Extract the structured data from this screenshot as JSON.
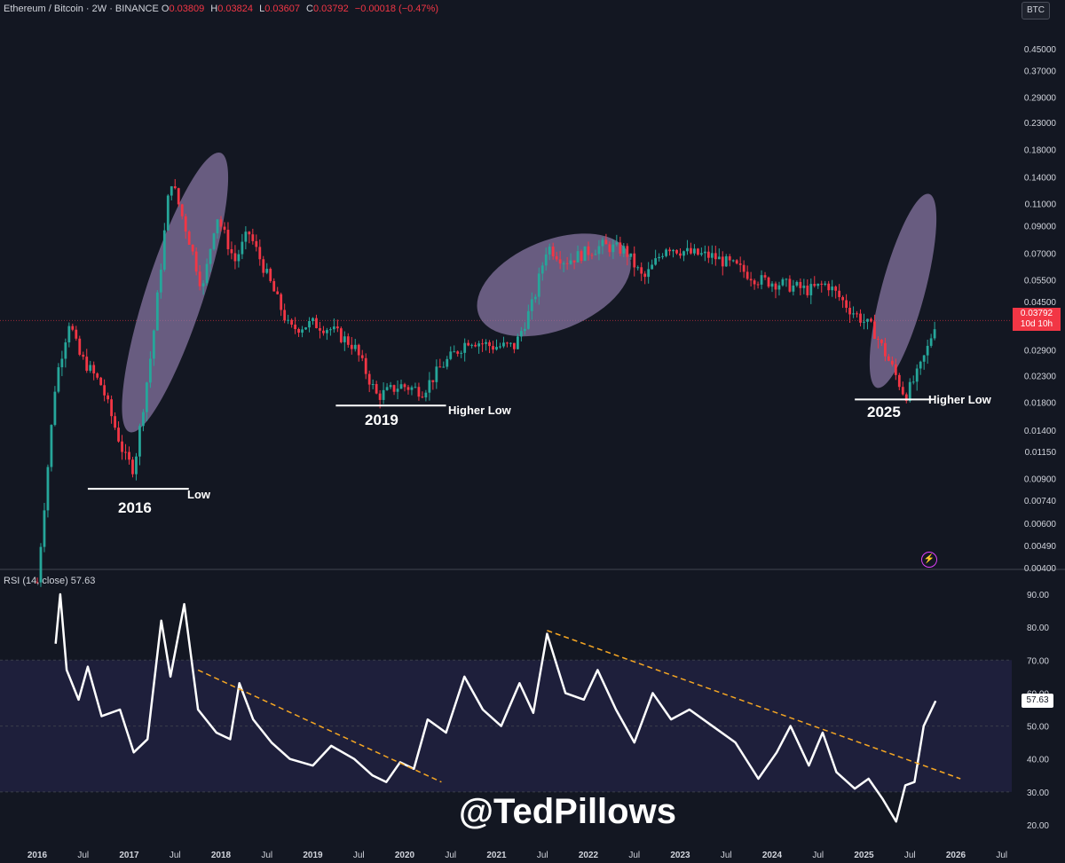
{
  "header": {
    "symbol": "Ethereum / Bitcoin · 2W · BINANCE",
    "o_label": "O",
    "o": "0.03809",
    "h_label": "H",
    "h": "0.03824",
    "l_label": "L",
    "l": "0.03607",
    "c_label": "C",
    "c": "0.03792",
    "change": "−0.00018 (−0.47%)"
  },
  "currency_button": "BTC",
  "price_badge": {
    "price": "0.03792",
    "countdown": "10d 10h"
  },
  "rsi_header": "RSI (14, close)  57.63",
  "rsi_badge": "57.63",
  "annotations": {
    "low_2016": "Low",
    "year_2016": "2016",
    "hl_2019": "Higher Low",
    "year_2019": "2019",
    "hl_2025": "Higher Low",
    "year_2025": "2025"
  },
  "watermark": "@TedPillows",
  "colors": {
    "background": "#131722",
    "up": "#26a69a",
    "down": "#f23645",
    "highlight": "#8d7ba8",
    "trendline": "#f5a623",
    "rsi_line": "#ffffff",
    "rsi_band": "#1e1f3b"
  },
  "icons": {
    "bolt": "lightning-icon"
  },
  "chart_data": [
    {
      "type": "candlestick",
      "scale": "log",
      "y_ticks": [
        "0.45000",
        "0.37000",
        "0.29000",
        "0.23000",
        "0.18000",
        "0.14000",
        "0.11000",
        "0.09000",
        "0.07000",
        "0.05500",
        "0.04500",
        "0.02900",
        "0.02300",
        "0.01800",
        "0.01400",
        "0.01150",
        "0.00900",
        "0.00740",
        "0.00600",
        "0.00490",
        "0.00400"
      ],
      "x_ticks": [
        "2016",
        "Jul",
        "2017",
        "Jul",
        "2018",
        "Jul",
        "2019",
        "Jul",
        "2020",
        "Jul",
        "2021",
        "Jul",
        "2022",
        "Jul",
        "2023",
        "Jul",
        "2024",
        "Jul",
        "2025",
        "Jul",
        "2026",
        "Jul"
      ],
      "ylim": [
        0.004,
        0.5
      ],
      "current_price": 0.03792,
      "series": [
        {
          "date": 2016.0,
          "close": 0.0035
        },
        {
          "date": 2016.2,
          "close": 0.022
        },
        {
          "date": 2016.35,
          "close": 0.038
        },
        {
          "date": 2016.45,
          "close": 0.028
        },
        {
          "date": 2016.7,
          "close": 0.021
        },
        {
          "date": 2016.95,
          "close": 0.011
        },
        {
          "date": 2017.05,
          "close": 0.0098
        },
        {
          "date": 2017.25,
          "close": 0.03
        },
        {
          "date": 2017.45,
          "close": 0.14
        },
        {
          "date": 2017.65,
          "close": 0.08
        },
        {
          "date": 2017.8,
          "close": 0.05
        },
        {
          "date": 2017.95,
          "close": 0.1
        },
        {
          "date": 2018.15,
          "close": 0.065
        },
        {
          "date": 2018.3,
          "close": 0.085
        },
        {
          "date": 2018.55,
          "close": 0.052
        },
        {
          "date": 2018.75,
          "close": 0.035
        },
        {
          "date": 2019.0,
          "close": 0.037
        },
        {
          "date": 2019.2,
          "close": 0.035
        },
        {
          "date": 2019.45,
          "close": 0.03
        },
        {
          "date": 2019.7,
          "close": 0.019
        },
        {
          "date": 2019.95,
          "close": 0.021
        },
        {
          "date": 2020.2,
          "close": 0.02
        },
        {
          "date": 2020.4,
          "close": 0.025
        },
        {
          "date": 2020.7,
          "close": 0.032
        },
        {
          "date": 2020.95,
          "close": 0.03
        },
        {
          "date": 2021.2,
          "close": 0.03
        },
        {
          "date": 2021.4,
          "close": 0.045
        },
        {
          "date": 2021.55,
          "close": 0.075
        },
        {
          "date": 2021.75,
          "close": 0.065
        },
        {
          "date": 2021.95,
          "close": 0.07
        },
        {
          "date": 2022.15,
          "close": 0.075
        },
        {
          "date": 2022.4,
          "close": 0.072
        },
        {
          "date": 2022.6,
          "close": 0.055
        },
        {
          "date": 2022.85,
          "close": 0.075
        },
        {
          "date": 2023.1,
          "close": 0.07
        },
        {
          "date": 2023.35,
          "close": 0.068
        },
        {
          "date": 2023.6,
          "close": 0.062
        },
        {
          "date": 2023.85,
          "close": 0.055
        },
        {
          "date": 2024.1,
          "close": 0.053
        },
        {
          "date": 2024.4,
          "close": 0.05
        },
        {
          "date": 2024.6,
          "close": 0.053
        },
        {
          "date": 2024.85,
          "close": 0.042
        },
        {
          "date": 2025.1,
          "close": 0.035
        },
        {
          "date": 2025.3,
          "close": 0.025
        },
        {
          "date": 2025.45,
          "close": 0.019
        },
        {
          "date": 2025.6,
          "close": 0.024
        },
        {
          "date": 2025.7,
          "close": 0.03
        },
        {
          "date": 2025.78,
          "close": 0.038
        }
      ]
    },
    {
      "type": "line",
      "y_ticks": [
        "90.00",
        "80.00",
        "70.00",
        "60.00",
        "50.00",
        "40.00",
        "30.00",
        "20.00"
      ],
      "ylim": [
        16,
        96
      ],
      "band": [
        30,
        70
      ],
      "current": 57.63,
      "series": [
        {
          "date": 2016.2,
          "value": 75
        },
        {
          "date": 2016.25,
          "value": 90
        },
        {
          "date": 2016.32,
          "value": 67
        },
        {
          "date": 2016.45,
          "value": 58
        },
        {
          "date": 2016.55,
          "value": 68
        },
        {
          "date": 2016.7,
          "value": 53
        },
        {
          "date": 2016.9,
          "value": 55
        },
        {
          "date": 2017.05,
          "value": 42
        },
        {
          "date": 2017.2,
          "value": 46
        },
        {
          "date": 2017.35,
          "value": 82
        },
        {
          "date": 2017.45,
          "value": 65
        },
        {
          "date": 2017.6,
          "value": 87
        },
        {
          "date": 2017.75,
          "value": 55
        },
        {
          "date": 2017.95,
          "value": 48
        },
        {
          "date": 2018.1,
          "value": 46
        },
        {
          "date": 2018.2,
          "value": 63
        },
        {
          "date": 2018.35,
          "value": 52
        },
        {
          "date": 2018.55,
          "value": 45
        },
        {
          "date": 2018.75,
          "value": 40
        },
        {
          "date": 2019.0,
          "value": 38
        },
        {
          "date": 2019.2,
          "value": 44
        },
        {
          "date": 2019.45,
          "value": 40
        },
        {
          "date": 2019.65,
          "value": 35
        },
        {
          "date": 2019.8,
          "value": 33
        },
        {
          "date": 2019.95,
          "value": 39
        },
        {
          "date": 2020.1,
          "value": 37
        },
        {
          "date": 2020.25,
          "value": 52
        },
        {
          "date": 2020.45,
          "value": 48
        },
        {
          "date": 2020.65,
          "value": 65
        },
        {
          "date": 2020.85,
          "value": 55
        },
        {
          "date": 2021.05,
          "value": 50
        },
        {
          "date": 2021.25,
          "value": 63
        },
        {
          "date": 2021.4,
          "value": 54
        },
        {
          "date": 2021.55,
          "value": 78
        },
        {
          "date": 2021.75,
          "value": 60
        },
        {
          "date": 2021.95,
          "value": 58
        },
        {
          "date": 2022.1,
          "value": 67
        },
        {
          "date": 2022.3,
          "value": 55
        },
        {
          "date": 2022.5,
          "value": 45
        },
        {
          "date": 2022.7,
          "value": 60
        },
        {
          "date": 2022.9,
          "value": 52
        },
        {
          "date": 2023.1,
          "value": 55
        },
        {
          "date": 2023.35,
          "value": 50
        },
        {
          "date": 2023.6,
          "value": 45
        },
        {
          "date": 2023.85,
          "value": 34
        },
        {
          "date": 2024.05,
          "value": 42
        },
        {
          "date": 2024.2,
          "value": 50
        },
        {
          "date": 2024.4,
          "value": 38
        },
        {
          "date": 2024.55,
          "value": 48
        },
        {
          "date": 2024.7,
          "value": 36
        },
        {
          "date": 2024.9,
          "value": 31
        },
        {
          "date": 2025.05,
          "value": 34
        },
        {
          "date": 2025.2,
          "value": 28
        },
        {
          "date": 2025.35,
          "value": 21
        },
        {
          "date": 2025.45,
          "value": 32
        },
        {
          "date": 2025.55,
          "value": 33
        },
        {
          "date": 2025.65,
          "value": 50
        },
        {
          "date": 2025.78,
          "value": 57.63
        }
      ]
    }
  ]
}
